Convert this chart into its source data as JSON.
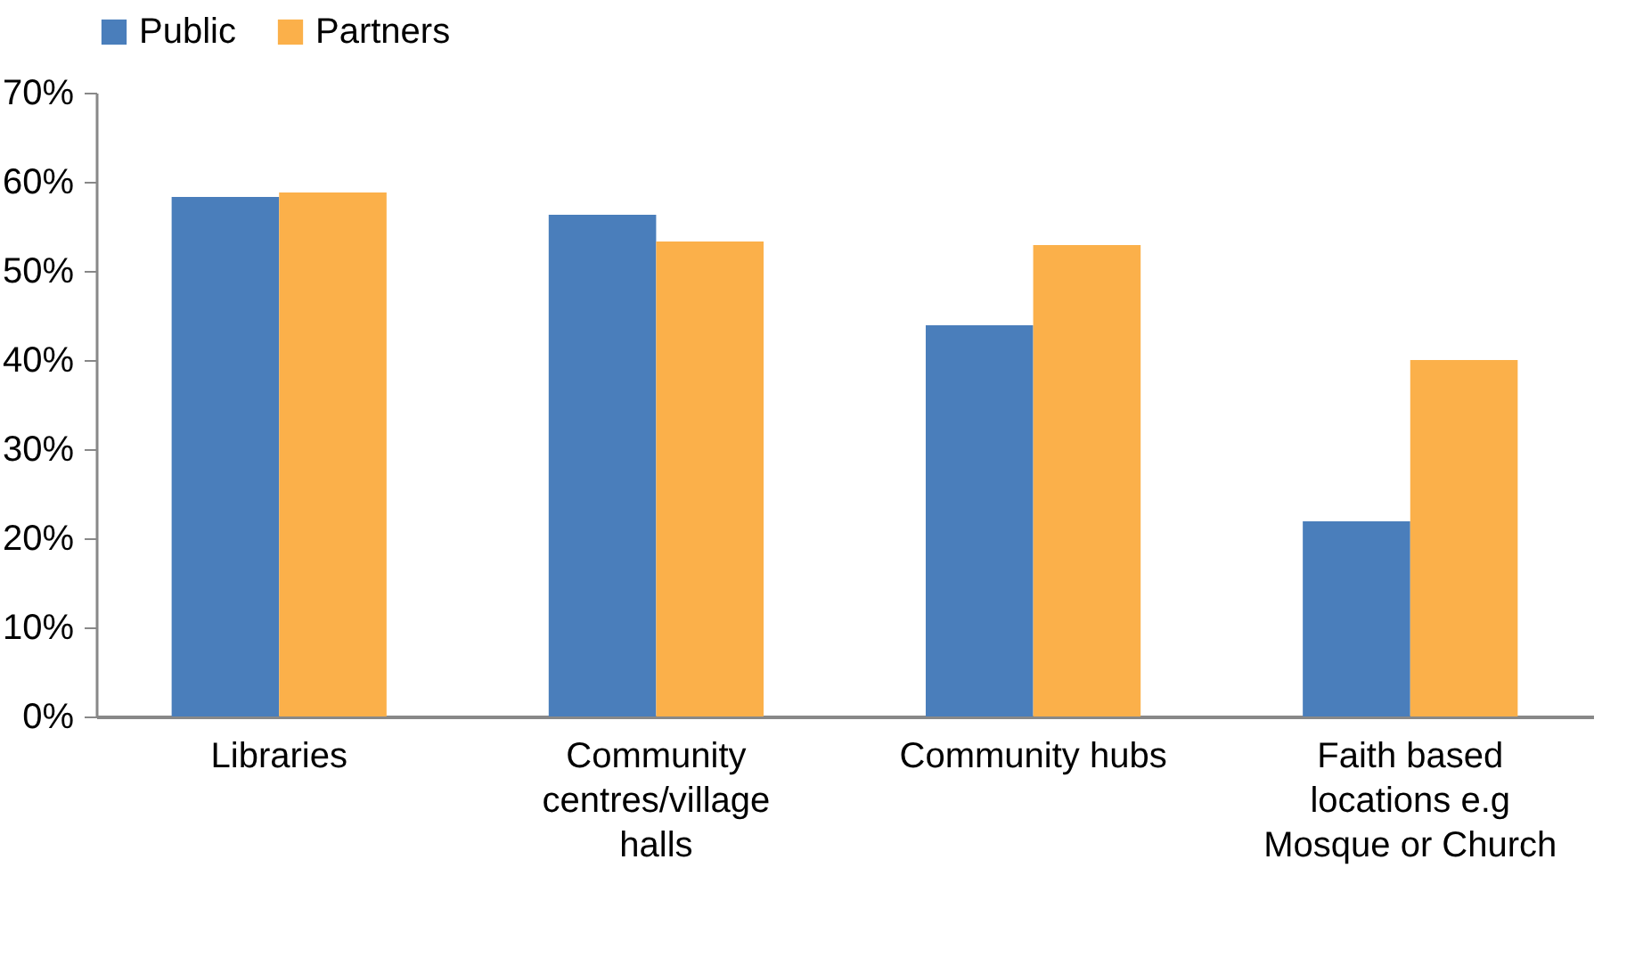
{
  "chart_data": {
    "type": "bar",
    "categories": [
      "Libraries",
      "Community centres/village halls",
      "Community hubs",
      "Faith based locations e.g Mosque or Church"
    ],
    "series": [
      {
        "name": "Public",
        "color": "#4a7ebb",
        "values": [
          58.3,
          56.3,
          43.9,
          21.9
        ]
      },
      {
        "name": "Partners",
        "color": "#fbb04a",
        "values": [
          58.8,
          53.3,
          52.9,
          40.0
        ]
      }
    ],
    "ylim": [
      0,
      70
    ],
    "yticks": [
      {
        "value": 0,
        "label": "0%"
      },
      {
        "value": 10,
        "label": "10%"
      },
      {
        "value": 20,
        "label": "20%"
      },
      {
        "value": 30,
        "label": "30%"
      },
      {
        "value": 40,
        "label": "40%"
      },
      {
        "value": 50,
        "label": "50%"
      },
      {
        "value": 60,
        "label": "60%"
      },
      {
        "value": 70,
        "label": "70%"
      }
    ],
    "legend": "top",
    "grid": false
  }
}
